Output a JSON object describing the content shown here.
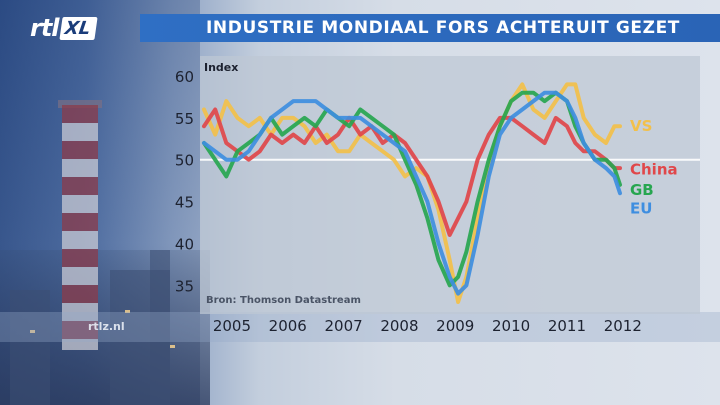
{
  "header": {
    "logo_rtl": "rtl",
    "logo_xl": "XL",
    "title": "INDUSTRIE MONDIAAL FORS ACHTERUIT GEZET"
  },
  "watermark": "rtlz.nl",
  "colors": {
    "VS": "#f2c04a",
    "China": "#e0474a",
    "GB": "#27a650",
    "EU": "#3e8ee0",
    "title_bar": "#2f6fc4"
  },
  "chart_data": {
    "type": "line",
    "title": "INDUSTRIE MONDIAAL FORS ACHTERUIT GEZET",
    "ylabel": "Index",
    "xlabel": "",
    "source": "Bron: Thomson Datastream",
    "ylim": [
      33,
      60
    ],
    "xlim": [
      2004.5,
      2011.95
    ],
    "yticks": [
      35,
      40,
      45,
      50,
      55,
      60
    ],
    "xticks": [
      "2005",
      "2006",
      "2007",
      "2008",
      "2009",
      "2010",
      "2011",
      "2012"
    ],
    "reference_line": 50,
    "grid": false,
    "legend_placement": "right, at line ends",
    "series": [
      {
        "name": "VS",
        "points": [
          [
            2004.5,
            56
          ],
          [
            2004.7,
            53
          ],
          [
            2004.9,
            57
          ],
          [
            2005.1,
            55
          ],
          [
            2005.3,
            54
          ],
          [
            2005.5,
            55
          ],
          [
            2005.7,
            53
          ],
          [
            2005.9,
            55
          ],
          [
            2006.1,
            55
          ],
          [
            2006.3,
            54
          ],
          [
            2006.5,
            52
          ],
          [
            2006.7,
            53
          ],
          [
            2006.9,
            51
          ],
          [
            2007.1,
            51
          ],
          [
            2007.3,
            53
          ],
          [
            2007.5,
            52
          ],
          [
            2007.7,
            51
          ],
          [
            2007.9,
            50
          ],
          [
            2008.1,
            48
          ],
          [
            2008.3,
            49
          ],
          [
            2008.5,
            48
          ],
          [
            2008.7,
            44
          ],
          [
            2008.9,
            38
          ],
          [
            2009.05,
            33
          ],
          [
            2009.2,
            36
          ],
          [
            2009.4,
            43
          ],
          [
            2009.6,
            49
          ],
          [
            2009.8,
            54
          ],
          [
            2010.0,
            57
          ],
          [
            2010.2,
            59
          ],
          [
            2010.4,
            56
          ],
          [
            2010.6,
            55
          ],
          [
            2010.8,
            57
          ],
          [
            2011.0,
            59
          ],
          [
            2011.15,
            59
          ],
          [
            2011.3,
            55
          ],
          [
            2011.5,
            53
          ],
          [
            2011.7,
            52
          ],
          [
            2011.85,
            54
          ],
          [
            2011.95,
            54
          ]
        ]
      },
      {
        "name": "China",
        "points": [
          [
            2004.5,
            54
          ],
          [
            2004.7,
            56
          ],
          [
            2004.9,
            52
          ],
          [
            2005.1,
            51
          ],
          [
            2005.3,
            50
          ],
          [
            2005.5,
            51
          ],
          [
            2005.7,
            53
          ],
          [
            2005.9,
            52
          ],
          [
            2006.1,
            53
          ],
          [
            2006.3,
            52
          ],
          [
            2006.5,
            54
          ],
          [
            2006.7,
            52
          ],
          [
            2006.9,
            53
          ],
          [
            2007.1,
            55
          ],
          [
            2007.3,
            53
          ],
          [
            2007.5,
            54
          ],
          [
            2007.7,
            52
          ],
          [
            2007.9,
            53
          ],
          [
            2008.1,
            52
          ],
          [
            2008.3,
            50
          ],
          [
            2008.5,
            48
          ],
          [
            2008.7,
            45
          ],
          [
            2008.9,
            41
          ],
          [
            2009.05,
            43
          ],
          [
            2009.2,
            45
          ],
          [
            2009.4,
            50
          ],
          [
            2009.6,
            53
          ],
          [
            2009.8,
            55
          ],
          [
            2010.0,
            55
          ],
          [
            2010.2,
            54
          ],
          [
            2010.4,
            53
          ],
          [
            2010.6,
            52
          ],
          [
            2010.8,
            55
          ],
          [
            2011.0,
            54
          ],
          [
            2011.15,
            52
          ],
          [
            2011.3,
            51
          ],
          [
            2011.5,
            51
          ],
          [
            2011.7,
            50
          ],
          [
            2011.85,
            49
          ],
          [
            2011.95,
            49
          ]
        ]
      },
      {
        "name": "GB",
        "points": [
          [
            2004.5,
            52
          ],
          [
            2004.7,
            50
          ],
          [
            2004.9,
            48
          ],
          [
            2005.1,
            51
          ],
          [
            2005.3,
            52
          ],
          [
            2005.5,
            53
          ],
          [
            2005.7,
            55
          ],
          [
            2005.9,
            53
          ],
          [
            2006.1,
            54
          ],
          [
            2006.3,
            55
          ],
          [
            2006.5,
            54
          ],
          [
            2006.7,
            56
          ],
          [
            2006.9,
            55
          ],
          [
            2007.1,
            54
          ],
          [
            2007.3,
            56
          ],
          [
            2007.5,
            55
          ],
          [
            2007.7,
            54
          ],
          [
            2007.9,
            53
          ],
          [
            2008.1,
            50
          ],
          [
            2008.3,
            47
          ],
          [
            2008.5,
            43
          ],
          [
            2008.7,
            38
          ],
          [
            2008.9,
            35
          ],
          [
            2009.05,
            36
          ],
          [
            2009.2,
            39
          ],
          [
            2009.4,
            45
          ],
          [
            2009.6,
            50
          ],
          [
            2009.8,
            54
          ],
          [
            2010.0,
            57
          ],
          [
            2010.2,
            58
          ],
          [
            2010.4,
            58
          ],
          [
            2010.6,
            57
          ],
          [
            2010.8,
            58
          ],
          [
            2011.0,
            57
          ],
          [
            2011.15,
            54
          ],
          [
            2011.3,
            52
          ],
          [
            2011.5,
            50
          ],
          [
            2011.7,
            50
          ],
          [
            2011.85,
            49
          ],
          [
            2011.95,
            47
          ]
        ]
      },
      {
        "name": "EU",
        "points": [
          [
            2004.5,
            52
          ],
          [
            2004.7,
            51
          ],
          [
            2004.9,
            50
          ],
          [
            2005.1,
            50
          ],
          [
            2005.3,
            51
          ],
          [
            2005.5,
            53
          ],
          [
            2005.7,
            55
          ],
          [
            2005.9,
            56
          ],
          [
            2006.1,
            57
          ],
          [
            2006.3,
            57
          ],
          [
            2006.5,
            57
          ],
          [
            2006.7,
            56
          ],
          [
            2006.9,
            55
          ],
          [
            2007.1,
            55
          ],
          [
            2007.3,
            55
          ],
          [
            2007.5,
            54
          ],
          [
            2007.7,
            53
          ],
          [
            2007.9,
            52
          ],
          [
            2008.1,
            51
          ],
          [
            2008.3,
            48
          ],
          [
            2008.5,
            45
          ],
          [
            2008.7,
            40
          ],
          [
            2008.9,
            36
          ],
          [
            2009.05,
            34
          ],
          [
            2009.2,
            35
          ],
          [
            2009.4,
            41
          ],
          [
            2009.6,
            48
          ],
          [
            2009.8,
            53
          ],
          [
            2010.0,
            55
          ],
          [
            2010.2,
            56
          ],
          [
            2010.4,
            57
          ],
          [
            2010.6,
            58
          ],
          [
            2010.8,
            58
          ],
          [
            2011.0,
            57
          ],
          [
            2011.15,
            55
          ],
          [
            2011.3,
            52
          ],
          [
            2011.5,
            50
          ],
          [
            2011.7,
            49
          ],
          [
            2011.85,
            48
          ],
          [
            2011.95,
            46
          ]
        ]
      }
    ]
  }
}
